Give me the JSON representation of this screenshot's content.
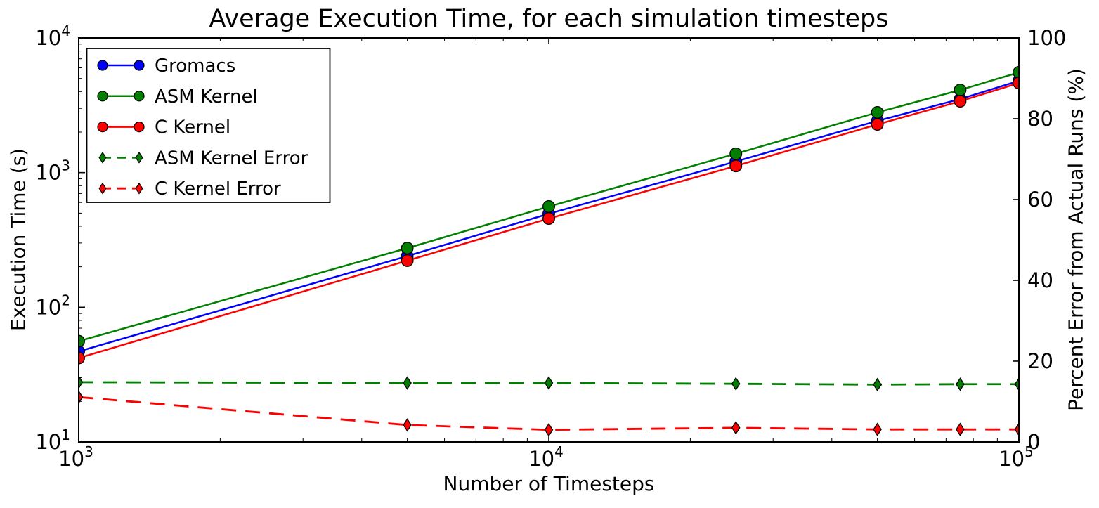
{
  "chart_data": {
    "type": "line",
    "title": "Average Execution Time, for each simulation timesteps",
    "xlabel": "Number of Timesteps",
    "ylabel_left": "Execution Time (s)",
    "ylabel_right": "Percent Error from Actual Runs (%)",
    "x_scale": "log",
    "x_range": [
      1000,
      100000
    ],
    "y_left_scale": "log",
    "y_left_range": [
      10,
      10000
    ],
    "y_right_scale": "linear",
    "y_right_range": [
      0,
      100
    ],
    "x_tick_exponents": [
      3,
      4,
      5
    ],
    "y_left_tick_exponents": [
      4,
      3,
      2,
      1
    ],
    "y_right_ticks": [
      100,
      80,
      60,
      40,
      20,
      0
    ],
    "grid": false,
    "legend_position": "upper-left",
    "x": [
      1000,
      5000,
      10000,
      25000,
      50000,
      75000,
      100000
    ],
    "series": [
      {
        "name": "Gromacs",
        "axis": "left",
        "color": "#0000ff",
        "marker": "circle",
        "line": "solid",
        "values": [
          47,
          240,
          495,
          1210,
          2420,
          3520,
          4800
        ]
      },
      {
        "name": "ASM Kernel",
        "axis": "left",
        "color": "#007f00",
        "marker": "circle",
        "line": "solid",
        "values": [
          56,
          275,
          560,
          1380,
          2800,
          4110,
          5550
        ]
      },
      {
        "name": "C Kernel",
        "axis": "left",
        "color": "#ff0000",
        "marker": "circle",
        "line": "solid",
        "values": [
          42,
          222,
          456,
          1120,
          2280,
          3390,
          4630
        ]
      },
      {
        "name": "ASM Kernel Error",
        "axis": "right",
        "color": "#007f00",
        "marker": "diamond",
        "line": "dashed",
        "values": [
          14.8,
          14.6,
          14.6,
          14.4,
          14.2,
          14.3,
          14.3
        ]
      },
      {
        "name": "C Kernel Error",
        "axis": "right",
        "color": "#ff0000",
        "marker": "diamond",
        "line": "dashed",
        "values": [
          11.1,
          4.2,
          3.0,
          3.5,
          3.1,
          3.1,
          3.1
        ]
      }
    ],
    "colors": {
      "axis": "#000000",
      "background": "#ffffff"
    }
  }
}
